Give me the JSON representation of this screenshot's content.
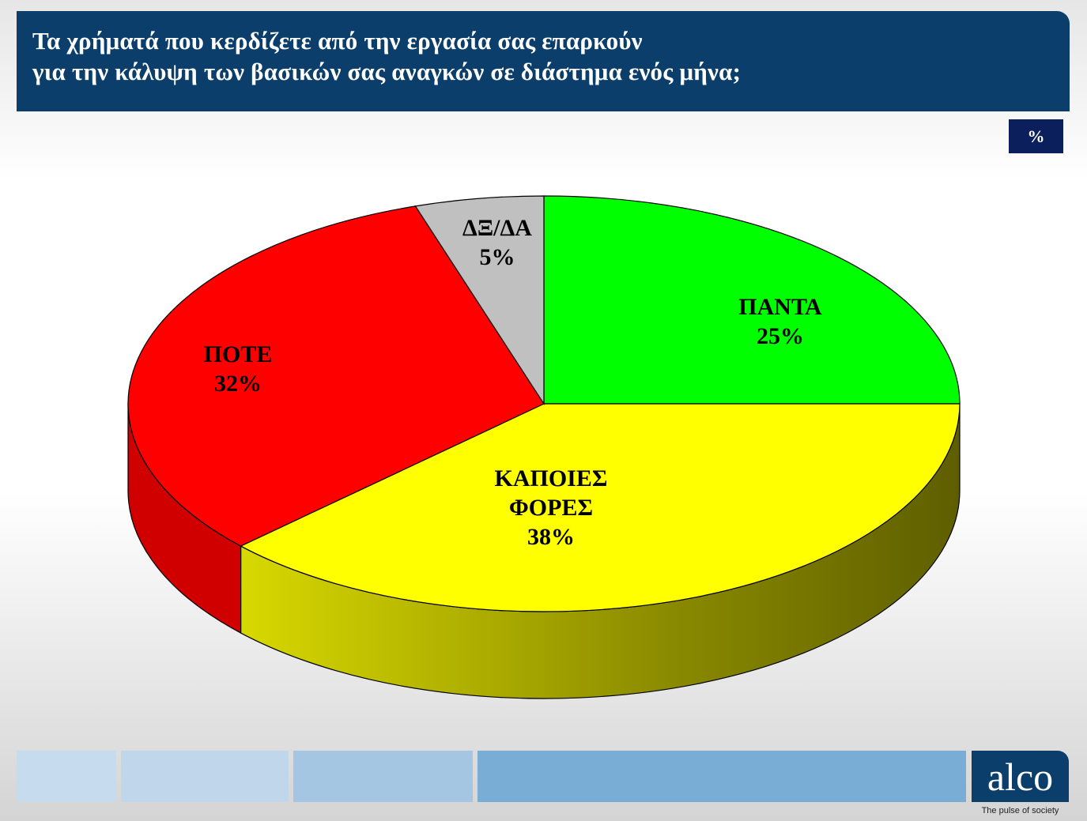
{
  "header": {
    "title_line1": "Τα χρήματά που κερδίζετε από την εργασία σας επαρκούν",
    "title_line2": "για την κάλυψη των βασικών σας αναγκών σε διάστημα ενός μήνα;"
  },
  "unit_badge": "%",
  "chart_data": {
    "type": "pie",
    "style": "3d",
    "start": "top",
    "direction": "clockwise",
    "slices": [
      {
        "label": "ΠΑΝΤΑ",
        "value": 25,
        "value_label": "25%",
        "color": "#00ff00",
        "side_color": "#00b000"
      },
      {
        "label": "ΚΑΠΟΙΕΣ ΦΟΡΕΣ",
        "label_lines": [
          "ΚΑΠΟΙΕΣ",
          "ΦΟΡΕΣ"
        ],
        "value": 38,
        "value_label": "38%",
        "color": "#ffff00",
        "side_color": "#8a8a00"
      },
      {
        "label": "ΠΟΤΕ",
        "value": 32,
        "value_label": "32%",
        "color": "#ff0000",
        "side_color": "#d00000"
      },
      {
        "label": "ΔΞ/ΔΑ",
        "value": 5,
        "value_label": "5%",
        "color": "#c0c0c0",
        "side_color": "#909090"
      }
    ]
  },
  "footer": {
    "logo_text": "alco",
    "tagline": "The pulse of society",
    "bar_colors": [
      "#c6dbee",
      "#c0d6ea",
      "#a4c6e2",
      "#7aadd6"
    ]
  }
}
